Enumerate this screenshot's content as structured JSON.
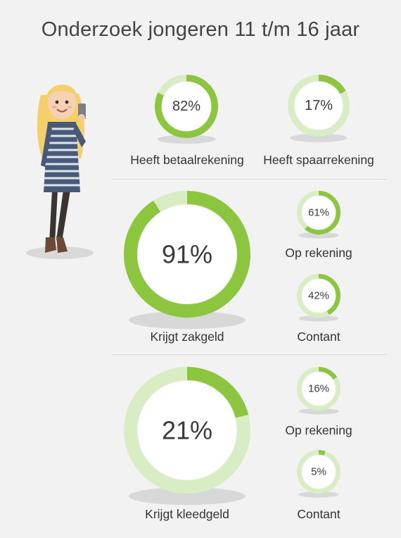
{
  "title": "Onderzoek jongeren 11 t/m 16 jaar",
  "colors": {
    "primary": "#8cc63f",
    "track": "#d9edc5",
    "inner": "#ffffff",
    "background": "#f2f2f2"
  },
  "chart_data": [
    {
      "type": "pie",
      "variant": "donut",
      "label": "Heeft betaalrekening",
      "value": 82,
      "value_label": "82%"
    },
    {
      "type": "pie",
      "variant": "donut",
      "label": "Heeft spaarrekening",
      "value": 17,
      "value_label": "17%"
    },
    {
      "type": "pie",
      "variant": "donut",
      "label": "Krijgt zakgeld",
      "value": 91,
      "value_label": "91%"
    },
    {
      "type": "pie",
      "variant": "donut",
      "label": "Op rekening",
      "value": 61,
      "value_label": "61%"
    },
    {
      "type": "pie",
      "variant": "donut",
      "label": "Contant",
      "value": 42,
      "value_label": "42%"
    },
    {
      "type": "pie",
      "variant": "donut",
      "label": "Krijgt kleedgeld",
      "value": 21,
      "value_label": "21%"
    },
    {
      "type": "pie",
      "variant": "donut",
      "label": "Op rekening",
      "value": 16,
      "value_label": "16%"
    },
    {
      "type": "pie",
      "variant": "donut",
      "label": "Contant",
      "value": 5,
      "value_label": "5%"
    }
  ]
}
